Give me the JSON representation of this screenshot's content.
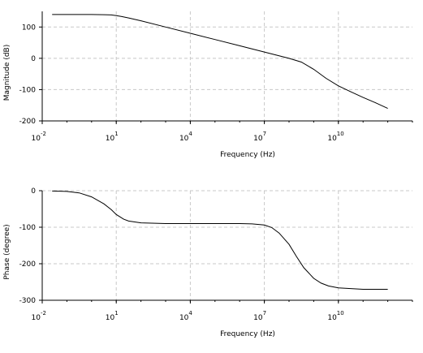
{
  "chart_data": [
    {
      "type": "line",
      "title": "",
      "xlabel": "Frequency (Hz)",
      "ylabel": "Magnitude (dB)",
      "xscale": "log",
      "xlim": [
        0.01,
        10000000000000
      ],
      "ylim": [
        -200,
        150
      ],
      "grid": true,
      "x_ticks": [
        {
          "base": "10",
          "exp": "-2",
          "value": 0.01
        },
        {
          "base": "10",
          "exp": "1",
          "value": 10
        },
        {
          "base": "10",
          "exp": "4",
          "value": 10000
        },
        {
          "base": "10",
          "exp": "7",
          "value": 10000000
        },
        {
          "base": "10",
          "exp": "10",
          "value": 10000000000
        }
      ],
      "y_ticks": [
        "100",
        "0",
        "-100",
        "-200"
      ],
      "y_tick_values": [
        100,
        0,
        -100,
        -200
      ],
      "series": [
        {
          "x_log10": [
            -1.6,
            -1.0,
            -0.5,
            0,
            0.5,
            0.8,
            1.0,
            1.2,
            1.5,
            2,
            3,
            4,
            5,
            6,
            7,
            7.5,
            8,
            8.5,
            9,
            9.5,
            10,
            10.5,
            11,
            11.5,
            12
          ],
          "y": [
            140,
            140,
            140,
            140,
            139.5,
            138.5,
            136.5,
            134,
            129,
            120,
            100,
            80,
            60,
            40,
            20,
            10,
            0,
            -12,
            -35,
            -64,
            -88,
            -107,
            -125,
            -142,
            -160
          ]
        }
      ]
    },
    {
      "type": "line",
      "title": "",
      "xlabel": "Frequency (Hz)",
      "ylabel": "Phase (degree)",
      "xscale": "log",
      "xlim": [
        0.01,
        10000000000000
      ],
      "ylim": [
        -300,
        0
      ],
      "grid": true,
      "x_ticks": [
        {
          "base": "10",
          "exp": "-2",
          "value": 0.01
        },
        {
          "base": "10",
          "exp": "1",
          "value": 10
        },
        {
          "base": "10",
          "exp": "4",
          "value": 10000
        },
        {
          "base": "10",
          "exp": "7",
          "value": 10000000
        },
        {
          "base": "10",
          "exp": "10",
          "value": 10000000000
        }
      ],
      "y_ticks": [
        "0",
        "-100",
        "-200",
        "-300"
      ],
      "y_tick_values": [
        0,
        -100,
        -200,
        -300
      ],
      "series": [
        {
          "x_log10": [
            -1.6,
            -1.0,
            -0.5,
            0,
            0.5,
            0.8,
            1.0,
            1.3,
            1.5,
            2,
            3,
            4,
            5,
            6,
            6.5,
            7,
            7.3,
            7.6,
            8,
            8.3,
            8.6,
            9,
            9.3,
            9.6,
            10,
            10.5,
            11,
            11.5,
            12
          ],
          "y": [
            -1,
            -2,
            -6,
            -17,
            -36,
            -52,
            -65,
            -78,
            -83,
            -88,
            -90,
            -90,
            -90,
            -90,
            -91,
            -94,
            -101,
            -116,
            -147,
            -180,
            -211,
            -240,
            -253,
            -261,
            -266,
            -268,
            -270,
            -270,
            -270
          ]
        }
      ]
    }
  ]
}
